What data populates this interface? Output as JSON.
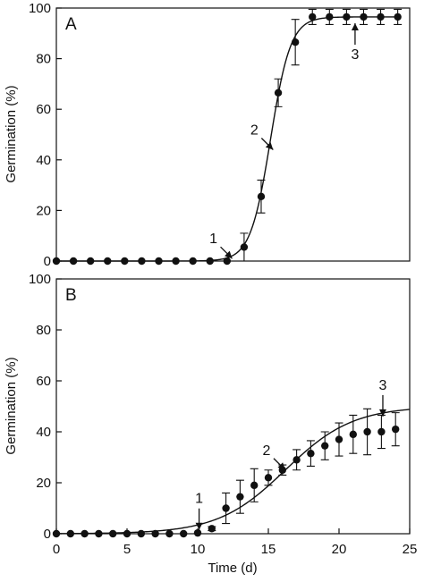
{
  "chart_data": [
    {
      "panel": "A",
      "type": "scatter",
      "xlabel": "",
      "ylabel": "Germination (%)",
      "xlim": [
        0,
        20.7
      ],
      "ylim": [
        0,
        100
      ],
      "xticks": [],
      "yticks": [
        0,
        20,
        40,
        60,
        80,
        100
      ],
      "grid": false,
      "points": [
        {
          "x": 0,
          "y": 0,
          "err": 0
        },
        {
          "x": 1,
          "y": 0,
          "err": 0
        },
        {
          "x": 2,
          "y": 0,
          "err": 0
        },
        {
          "x": 3,
          "y": 0,
          "err": 0
        },
        {
          "x": 4,
          "y": 0,
          "err": 0
        },
        {
          "x": 5,
          "y": 0,
          "err": 0
        },
        {
          "x": 6,
          "y": 0,
          "err": 0
        },
        {
          "x": 7,
          "y": 0,
          "err": 0
        },
        {
          "x": 8,
          "y": 0,
          "err": 0
        },
        {
          "x": 9,
          "y": 0,
          "err": 0
        },
        {
          "x": 10,
          "y": 0,
          "err": 0
        },
        {
          "x": 11,
          "y": 5.5,
          "err": 5.5
        },
        {
          "x": 12,
          "y": 25.5,
          "err": 6.5
        },
        {
          "x": 13,
          "y": 66.5,
          "err": 5.5
        },
        {
          "x": 14,
          "y": 86.5,
          "err": 9
        },
        {
          "x": 15,
          "y": 96.5,
          "err": 3
        },
        {
          "x": 16,
          "y": 96.5,
          "err": 3
        },
        {
          "x": 17,
          "y": 96.5,
          "err": 3
        },
        {
          "x": 18,
          "y": 96.5,
          "err": 3
        },
        {
          "x": 19,
          "y": 96.5,
          "err": 3
        },
        {
          "x": 20,
          "y": 96.5,
          "err": 3
        }
      ],
      "fit_curve": {
        "max": 96.5,
        "midpoint": 12.55,
        "slope": 1.7,
        "x_range": [
          0,
          20
        ]
      },
      "annotations": [
        {
          "label": "1",
          "x": 10.3,
          "y": 1,
          "direction": "down-right"
        },
        {
          "label": "2",
          "x": 12.7,
          "y": 44,
          "direction": "down-right"
        },
        {
          "label": "3",
          "x": 17.5,
          "y": 94,
          "direction": "up"
        }
      ]
    },
    {
      "panel": "B",
      "type": "scatter",
      "xlabel": "Time (d)",
      "ylabel": "Germination (%)",
      "xlim": [
        0,
        25
      ],
      "ylim": [
        0,
        100
      ],
      "xticks": [
        0,
        5,
        10,
        15,
        20,
        25
      ],
      "yticks": [
        0,
        20,
        40,
        60,
        80,
        100
      ],
      "grid": false,
      "points": [
        {
          "x": 0,
          "y": 0,
          "err": 0
        },
        {
          "x": 1,
          "y": 0,
          "err": 0
        },
        {
          "x": 2,
          "y": 0,
          "err": 0
        },
        {
          "x": 3,
          "y": 0,
          "err": 0
        },
        {
          "x": 4,
          "y": 0,
          "err": 0
        },
        {
          "x": 5,
          "y": 0,
          "err": 0
        },
        {
          "x": 6,
          "y": 0,
          "err": 0
        },
        {
          "x": 7,
          "y": 0,
          "err": 0
        },
        {
          "x": 8,
          "y": 0,
          "err": 0
        },
        {
          "x": 9,
          "y": 0,
          "err": 0
        },
        {
          "x": 10,
          "y": 0.3,
          "err": 0
        },
        {
          "x": 11,
          "y": 2,
          "err": 0.8
        },
        {
          "x": 12,
          "y": 10,
          "err": 6
        },
        {
          "x": 13,
          "y": 14.5,
          "err": 6.5
        },
        {
          "x": 14,
          "y": 19,
          "err": 6.5
        },
        {
          "x": 15,
          "y": 22,
          "err": 3
        },
        {
          "x": 16,
          "y": 25,
          "err": 2
        },
        {
          "x": 17,
          "y": 29,
          "err": 4
        },
        {
          "x": 18,
          "y": 31.5,
          "err": 5
        },
        {
          "x": 19,
          "y": 34.5,
          "err": 5.5
        },
        {
          "x": 20,
          "y": 37,
          "err": 6.5
        },
        {
          "x": 21,
          "y": 39,
          "err": 7.5
        },
        {
          "x": 22,
          "y": 40,
          "err": 9
        },
        {
          "x": 23,
          "y": 40,
          "err": 6.5
        },
        {
          "x": 24,
          "y": 41,
          "err": 6.5
        }
      ],
      "fit_curve": {
        "max": 50,
        "midpoint": 16.2,
        "slope": 0.42,
        "x_range": [
          0,
          25
        ]
      },
      "annotations": [
        {
          "label": "1",
          "x": 10.1,
          "y": 1.5,
          "direction": "down"
        },
        {
          "label": "2",
          "x": 16.2,
          "y": 25,
          "direction": "down-right"
        },
        {
          "label": "3",
          "x": 23.1,
          "y": 46,
          "direction": "down"
        }
      ]
    }
  ]
}
